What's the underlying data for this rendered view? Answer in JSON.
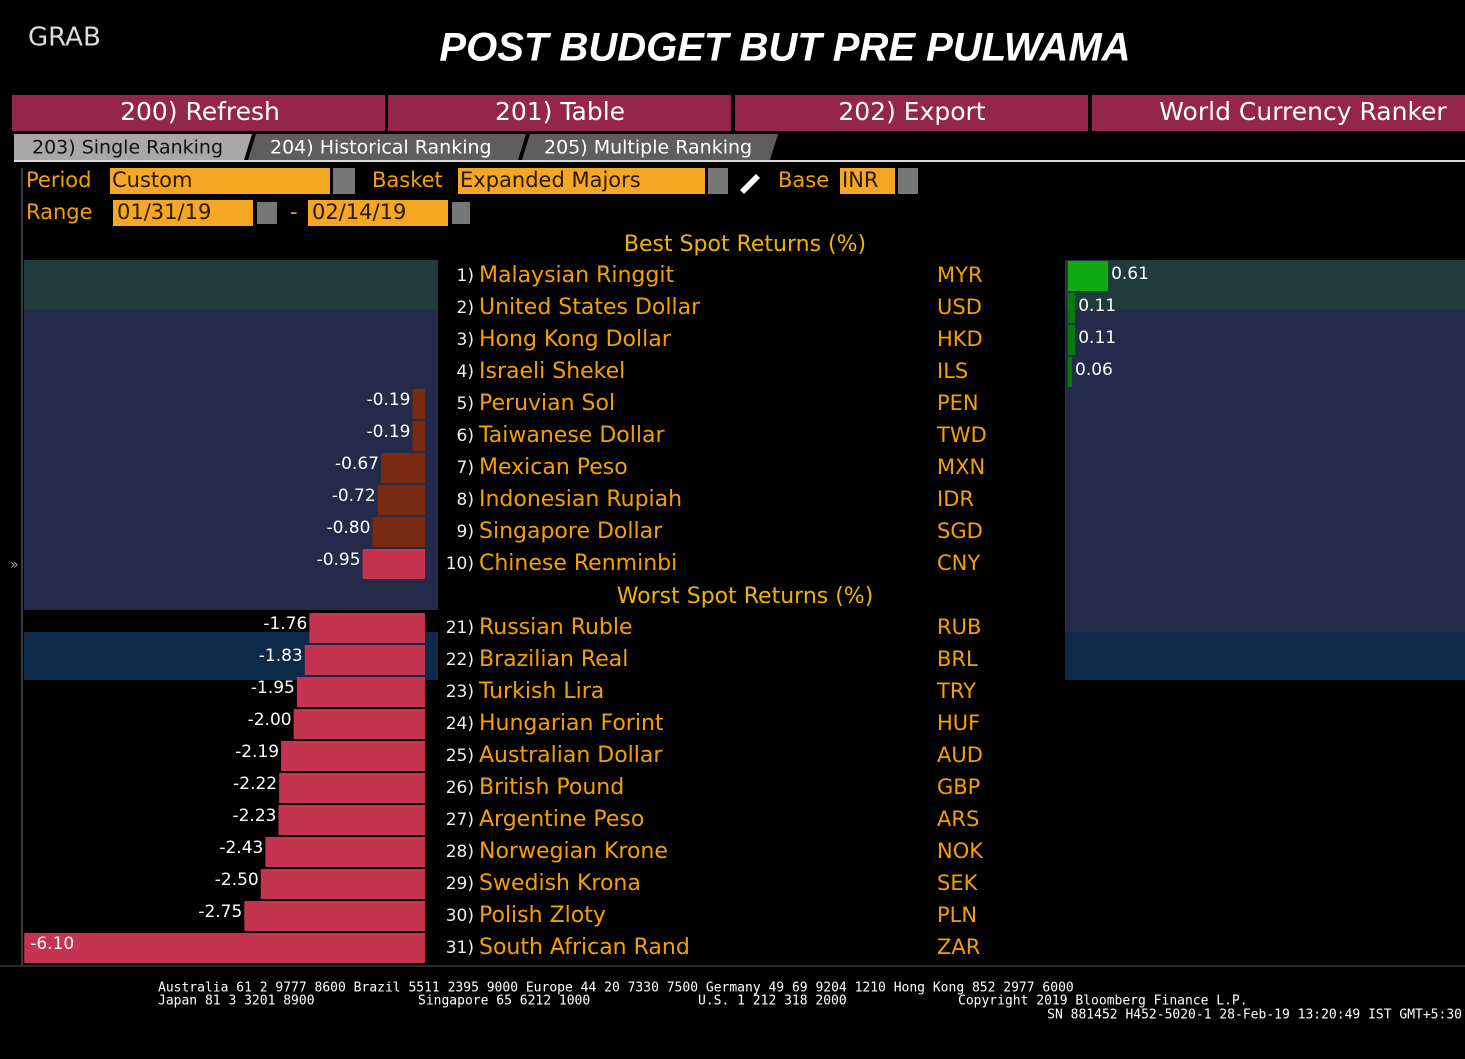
{
  "header": {
    "grab": "GRAB",
    "title": "POST BUDGET BUT PRE PULWAMA"
  },
  "menu": [
    "200) Refresh",
    "201) Table",
    "202) Export",
    "World Currency Ranker"
  ],
  "tabs": [
    "203) Single Ranking",
    "204) Historical Ranking",
    "205) Multiple Ranking"
  ],
  "controls": {
    "period_label": "Period",
    "period": "Custom",
    "basket_label": "Basket",
    "basket": "Expanded Majors",
    "base_label": "Base",
    "base": "INR",
    "range_label": "Range",
    "range_start": "01/31/19",
    "range_sep": "-",
    "range_end": "02/14/19"
  },
  "best": {
    "title": "Best Spot Returns (%)",
    "rows": [
      {
        "rank": "1)",
        "name": "Malaysian Ringgit",
        "code": "MYR",
        "value": 0.61
      },
      {
        "rank": "2)",
        "name": "United States Dollar",
        "code": "USD",
        "value": 0.11
      },
      {
        "rank": "3)",
        "name": "Hong Kong Dollar",
        "code": "HKD",
        "value": 0.11
      },
      {
        "rank": "4)",
        "name": "Israeli Shekel",
        "code": "ILS",
        "value": 0.06
      },
      {
        "rank": "5)",
        "name": "Peruvian Sol",
        "code": "PEN",
        "value": -0.19
      },
      {
        "rank": "6)",
        "name": "Taiwanese Dollar",
        "code": "TWD",
        "value": -0.19
      },
      {
        "rank": "7)",
        "name": "Mexican Peso",
        "code": "MXN",
        "value": -0.67
      },
      {
        "rank": "8)",
        "name": "Indonesian Rupiah",
        "code": "IDR",
        "value": -0.72
      },
      {
        "rank": "9)",
        "name": "Singapore Dollar",
        "code": "SGD",
        "value": -0.8,
        "value_label": "-0.80"
      },
      {
        "rank": "10)",
        "name": "Chinese Renminbi",
        "code": "CNY",
        "value": -0.95
      }
    ]
  },
  "worst": {
    "title": "Worst Spot Returns (%)",
    "rows": [
      {
        "rank": "21)",
        "name": "Russian Ruble",
        "code": "RUB",
        "value": -1.76
      },
      {
        "rank": "22)",
        "name": "Brazilian Real",
        "code": "BRL",
        "value": -1.83
      },
      {
        "rank": "23)",
        "name": "Turkish Lira",
        "code": "TRY",
        "value": -1.95
      },
      {
        "rank": "24)",
        "name": "Hungarian Forint",
        "code": "HUF",
        "value": -2,
        "value_label": "-2.00"
      },
      {
        "rank": "25)",
        "name": "Australian Dollar",
        "code": "AUD",
        "value": -2.19
      },
      {
        "rank": "26)",
        "name": "British Pound",
        "code": "GBP",
        "value": -2.22
      },
      {
        "rank": "27)",
        "name": "Argentine Peso",
        "code": "ARS",
        "value": -2.23
      },
      {
        "rank": "28)",
        "name": "Norwegian Krone",
        "code": "NOK",
        "value": -2.43
      },
      {
        "rank": "29)",
        "name": "Swedish Krona",
        "code": "SEK",
        "value": -2.5,
        "value_label": "-2.50"
      },
      {
        "rank": "30)",
        "name": "Polish Zloty",
        "code": "PLN",
        "value": -2.75
      },
      {
        "rank": "31)",
        "name": "South African Rand",
        "code": "ZAR",
        "value": -6.1,
        "value_label": "-6.10"
      }
    ]
  },
  "footer": [
    "Australia 61 2 9777 8600 Brazil 5511 2395 9000 Europe 44 20 7330 7500 Germany 49 69 9204 1210 Hong Kong 852 2977 6000",
    "Japan 81 3 3201 8900",
    "Singapore 65 6212 1000",
    "U.S. 1 212 318 2000",
    "Copyright 2019 Bloomberg Finance L.P.",
    "SN 881452 H452-5020-1 28-Feb-19 13:20:49 IST  GMT+5:30"
  ]
}
